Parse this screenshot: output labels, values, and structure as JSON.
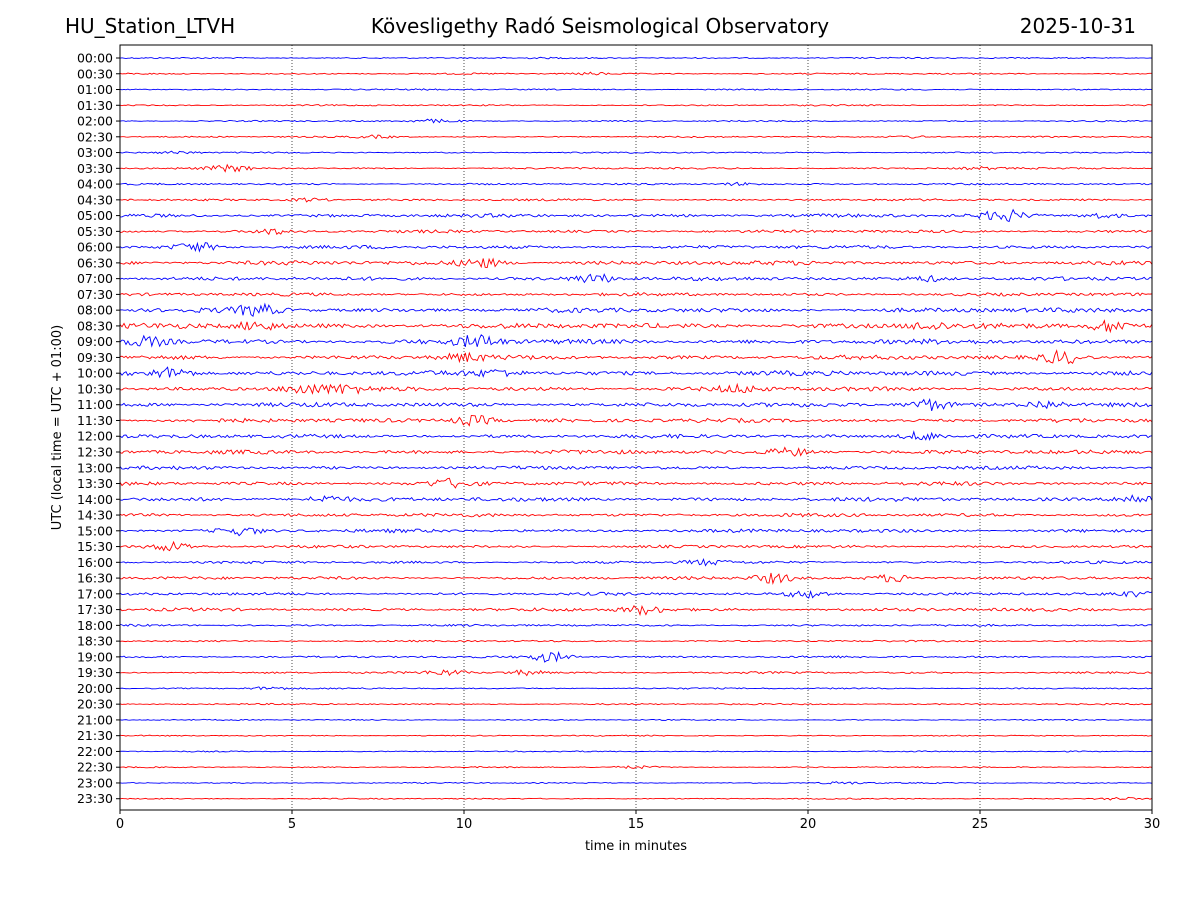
{
  "header": {
    "station": "HU_Station_LTVH",
    "observatory": "Kövesligethy Radó Seismological Observatory",
    "date": "2025-10-31"
  },
  "chart_data": {
    "type": "line",
    "title": "Kövesligethy Radó Seismological Observatory",
    "xlabel": "time in minutes",
    "ylabel": "UTC (local time = UTC + 01:00)",
    "xlim": [
      0,
      30
    ],
    "x_ticks": [
      "0",
      "5",
      "10",
      "15",
      "20",
      "25",
      "30"
    ],
    "x_tick_values": [
      0,
      5,
      10,
      15,
      20,
      25,
      30
    ],
    "grid": "vertical dotted at x tick positions",
    "colors": {
      "on_hour": "#0000ff",
      "half_hour": "#ff0000"
    },
    "row_labels": [
      "00:00",
      "00:30",
      "01:00",
      "01:30",
      "02:00",
      "02:30",
      "03:00",
      "03:30",
      "04:00",
      "04:30",
      "05:00",
      "05:30",
      "06:00",
      "06:30",
      "07:00",
      "07:30",
      "08:00",
      "08:30",
      "09:00",
      "09:30",
      "10:00",
      "10:30",
      "11:00",
      "11:30",
      "12:00",
      "12:30",
      "13:00",
      "13:30",
      "14:00",
      "14:30",
      "15:00",
      "15:30",
      "16:00",
      "16:30",
      "17:00",
      "17:30",
      "18:00",
      "18:30",
      "19:00",
      "19:30",
      "20:00",
      "20:30",
      "21:00",
      "21:30",
      "22:00",
      "22:30",
      "23:00",
      "23:30"
    ],
    "noise_level": [
      1,
      1,
      1,
      1,
      1,
      1,
      1,
      1.2,
      1.2,
      1.5,
      2.4,
      2,
      2.4,
      3,
      2.6,
      2.2,
      3.2,
      3.6,
      3.4,
      3,
      3.4,
      3,
      3,
      2.8,
      2.6,
      2.8,
      2.4,
      2.6,
      2.8,
      2.4,
      2.4,
      2,
      1.8,
      2,
      2,
      2.2,
      1.4,
      1.2,
      1.4,
      1.4,
      1,
      1,
      0.8,
      0.8,
      0.8,
      0.8,
      0.8,
      0.8
    ],
    "events": [
      {
        "row": "00:30",
        "t": 13.7,
        "amp": 2
      },
      {
        "row": "02:00",
        "t": 9.2,
        "amp": 2.5
      },
      {
        "row": "02:30",
        "t": 7.4,
        "amp": 2
      },
      {
        "row": "02:30",
        "t": 23,
        "amp": 2
      },
      {
        "row": "03:00",
        "t": 1.7,
        "amp": 2
      },
      {
        "row": "03:30",
        "t": 3.2,
        "amp": 5
      },
      {
        "row": "03:30",
        "t": 25,
        "amp": 2
      },
      {
        "row": "04:00",
        "t": 18,
        "amp": 2.5
      },
      {
        "row": "04:30",
        "t": 5.5,
        "amp": 3
      },
      {
        "row": "05:00",
        "t": 25.7,
        "amp": 9
      },
      {
        "row": "05:00",
        "t": 28.5,
        "amp": 4
      },
      {
        "row": "05:30",
        "t": 4.5,
        "amp": 4
      },
      {
        "row": "06:00",
        "t": 2.2,
        "amp": 7
      },
      {
        "row": "06:30",
        "t": 10.5,
        "amp": 7
      },
      {
        "row": "07:00",
        "t": 13.8,
        "amp": 7
      },
      {
        "row": "07:00",
        "t": 23.5,
        "amp": 4
      },
      {
        "row": "08:00",
        "t": 4,
        "amp": 8
      },
      {
        "row": "08:30",
        "t": 4,
        "amp": 7
      },
      {
        "row": "08:30",
        "t": 23.5,
        "amp": 6
      },
      {
        "row": "08:30",
        "t": 28.8,
        "amp": 9
      },
      {
        "row": "09:00",
        "t": 0.8,
        "amp": 7
      },
      {
        "row": "09:00",
        "t": 10.4,
        "amp": 10
      },
      {
        "row": "09:30",
        "t": 10,
        "amp": 6
      },
      {
        "row": "09:30",
        "t": 27.4,
        "amp": 10
      },
      {
        "row": "10:00",
        "t": 1.5,
        "amp": 9
      },
      {
        "row": "10:00",
        "t": 11,
        "amp": 5
      },
      {
        "row": "10:30",
        "t": 5.3,
        "amp": 8
      },
      {
        "row": "10:30",
        "t": 6.5,
        "amp": 6
      },
      {
        "row": "10:30",
        "t": 18,
        "amp": 5
      },
      {
        "row": "11:00",
        "t": 23.5,
        "amp": 9
      },
      {
        "row": "11:00",
        "t": 26.9,
        "amp": 6
      },
      {
        "row": "11:30",
        "t": 10.3,
        "amp": 8
      },
      {
        "row": "12:00",
        "t": 23.3,
        "amp": 7
      },
      {
        "row": "12:30",
        "t": 19.5,
        "amp": 6
      },
      {
        "row": "13:30",
        "t": 9.6,
        "amp": 6
      },
      {
        "row": "14:00",
        "t": 6,
        "amp": 5
      },
      {
        "row": "14:00",
        "t": 29.5,
        "amp": 8
      },
      {
        "row": "15:00",
        "t": 3.5,
        "amp": 6
      },
      {
        "row": "15:30",
        "t": 1.5,
        "amp": 7
      },
      {
        "row": "16:00",
        "t": 17,
        "amp": 4
      },
      {
        "row": "16:30",
        "t": 19,
        "amp": 8
      },
      {
        "row": "16:30",
        "t": 22.5,
        "amp": 6
      },
      {
        "row": "17:00",
        "t": 20,
        "amp": 6
      },
      {
        "row": "17:00",
        "t": 29.5,
        "amp": 4
      },
      {
        "row": "17:30",
        "t": 15.2,
        "amp": 7
      },
      {
        "row": "19:00",
        "t": 12.5,
        "amp": 8
      },
      {
        "row": "19:30",
        "t": 9.5,
        "amp": 4
      },
      {
        "row": "19:30",
        "t": 11.8,
        "amp": 4
      },
      {
        "row": "20:00",
        "t": 4.3,
        "amp": 2.5
      },
      {
        "row": "22:30",
        "t": 15,
        "amp": 2
      },
      {
        "row": "23:00",
        "t": 21,
        "amp": 2
      },
      {
        "row": "23:30",
        "t": 29,
        "amp": 2.5
      }
    ]
  }
}
